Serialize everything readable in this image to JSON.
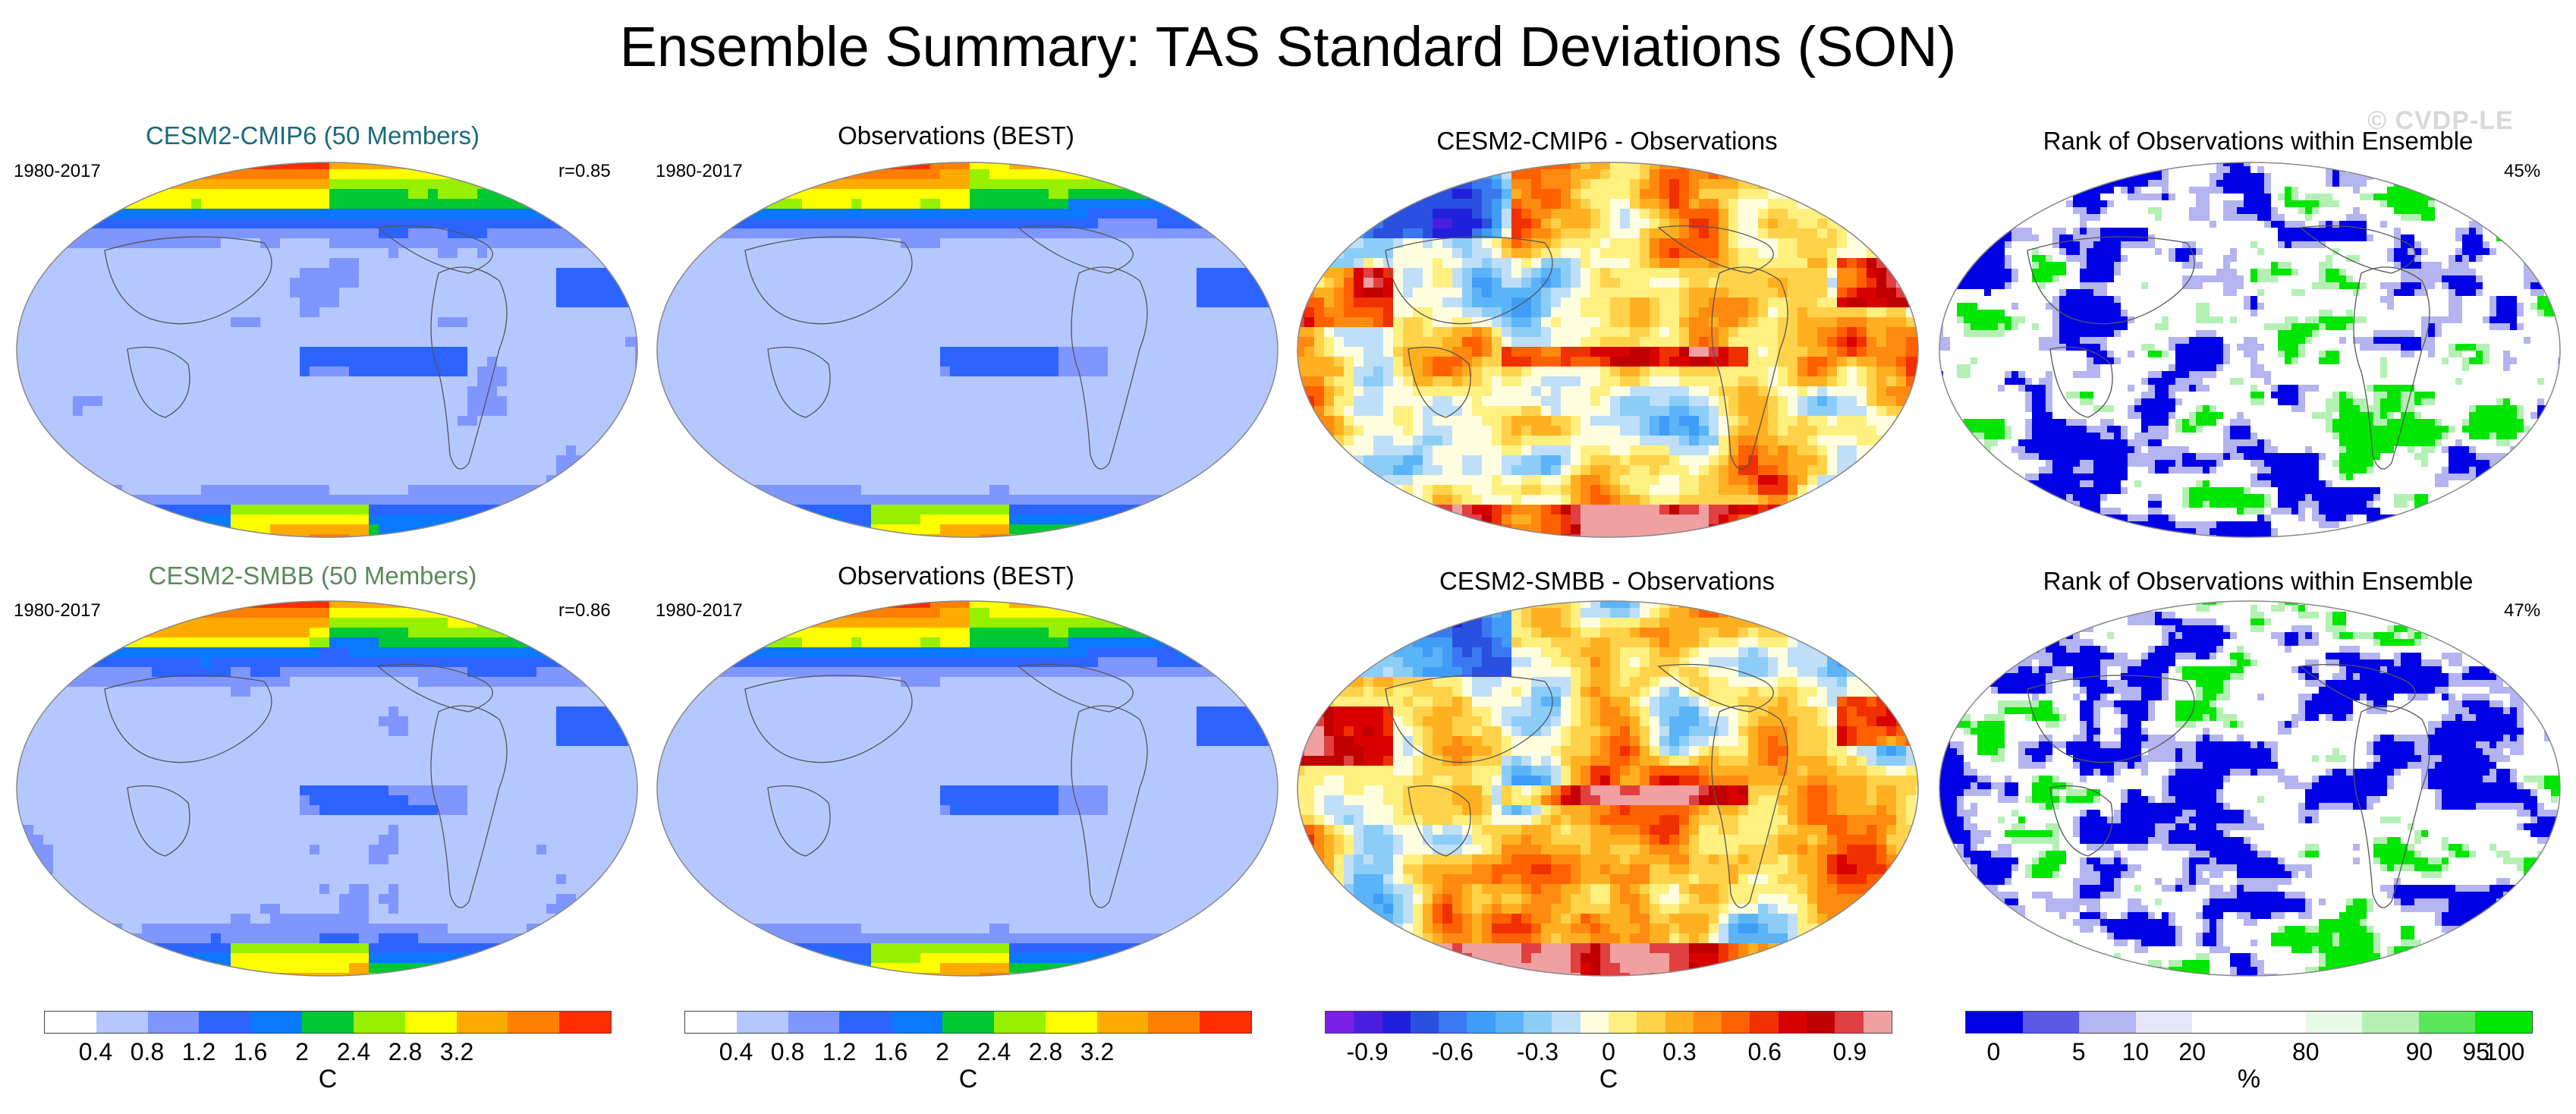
{
  "title": "Ensemble Summary: TAS Standard Deviations (SON)",
  "watermark": "© CVDP-LE",
  "rows": [
    {
      "panels": [
        {
          "title": "CESM2-CMIP6 (50 Members)",
          "title_color": "#1a6a7a",
          "left": "1980-2017",
          "right": "r=0.85",
          "kind": "std"
        },
        {
          "title": "Observations (BEST)",
          "title_color": "#000000",
          "left": "1980-2017",
          "right": "",
          "kind": "std"
        },
        {
          "title": "CESM2-CMIP6 - Observations",
          "title_color": "#000000",
          "left": "",
          "right": "",
          "kind": "diff"
        },
        {
          "title": "Rank of Observations within Ensemble",
          "title_color": "#000000",
          "left": "",
          "right": "45%",
          "kind": "rank"
        }
      ]
    },
    {
      "panels": [
        {
          "title": "CESM2-SMBB (50 Members)",
          "title_color": "#5a8a5a",
          "left": "1980-2017",
          "right": "r=0.86",
          "kind": "std"
        },
        {
          "title": "Observations (BEST)",
          "title_color": "#000000",
          "left": "1980-2017",
          "right": "",
          "kind": "std"
        },
        {
          "title": "CESM2-SMBB - Observations",
          "title_color": "#000000",
          "left": "",
          "right": "",
          "kind": "diff"
        },
        {
          "title": "Rank of Observations within Ensemble",
          "title_color": "#000000",
          "left": "",
          "right": "47%",
          "kind": "rank"
        }
      ]
    }
  ],
  "colorbars": [
    {
      "name": "std-colorbar-1",
      "colors": [
        "#ffffff",
        "#b4c8ff",
        "#7f96ff",
        "#2d64ff",
        "#0a78ff",
        "#00c832",
        "#96f000",
        "#ffff00",
        "#ffaa00",
        "#ff8000",
        "#ff2d00"
      ],
      "ticks": [
        "0.4",
        "0.8",
        "1.2",
        "1.6",
        "2",
        "2.4",
        "2.8",
        "3.2"
      ],
      "unit": "C"
    },
    {
      "name": "std-colorbar-2",
      "colors": [
        "#ffffff",
        "#b4c8ff",
        "#7f96ff",
        "#2d64ff",
        "#0a78ff",
        "#00c832",
        "#96f000",
        "#ffff00",
        "#ffaa00",
        "#ff8000",
        "#ff2d00"
      ],
      "ticks": [
        "0.4",
        "0.8",
        "1.2",
        "1.6",
        "2",
        "2.4",
        "2.8",
        "3.2"
      ],
      "unit": "C"
    },
    {
      "name": "diff-colorbar",
      "colors": [
        "#7a1fe8",
        "#4a1ee0",
        "#2020dc",
        "#2a50e0",
        "#3a78f0",
        "#3f9cf7",
        "#5ab4f7",
        "#8ccdf7",
        "#bedff7",
        "#ffffe0",
        "#fff080",
        "#ffd24a",
        "#ffb020",
        "#ff8a10",
        "#ff6000",
        "#f03000",
        "#d80000",
        "#c00000",
        "#e04040",
        "#f0a0a0"
      ],
      "ticks": [
        "-0.9",
        "-0.6",
        "-0.3",
        "0",
        "0.3",
        "0.6",
        "0.9"
      ],
      "unit": "C"
    },
    {
      "name": "rank-colorbar",
      "colors": [
        "#0000e6",
        "#5a5ae6",
        "#b4b4f0",
        "#e6e6fa",
        "#ffffff",
        "#ffffff",
        "#e6fae6",
        "#b4f0b4",
        "#5ae65a",
        "#00e600"
      ],
      "ticks": [
        "0",
        "5",
        "10",
        "20",
        "80",
        "90",
        "95",
        "100"
      ],
      "unit": "%"
    }
  ]
}
